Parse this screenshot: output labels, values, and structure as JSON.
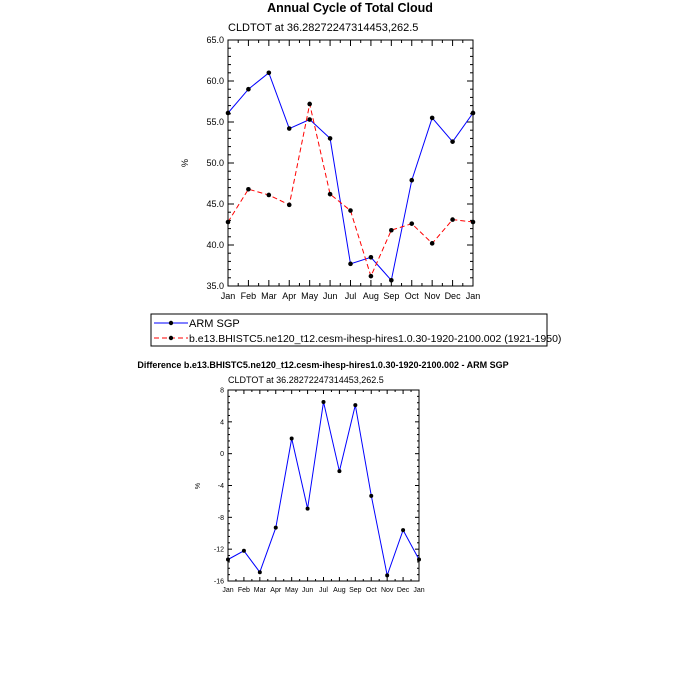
{
  "colors": {
    "obs": "#0000ff",
    "model": "#ff0000",
    "diff": "#0000ff",
    "marker": "#000000"
  },
  "chart_data": [
    {
      "type": "line",
      "title": "Annual Cycle of Total Cloud",
      "subtitle": "CLDTOT at 36.28272247314453,262.5",
      "ylabel": "%",
      "categories": [
        "Jan",
        "Feb",
        "Mar",
        "Apr",
        "May",
        "Jun",
        "Jul",
        "Aug",
        "Sep",
        "Oct",
        "Nov",
        "Dec",
        "Jan"
      ],
      "ylim": [
        35,
        65
      ],
      "yticks": [
        35,
        40,
        45,
        50,
        55,
        60,
        65
      ],
      "ytick_labels": [
        "35.0",
        "40.0",
        "45.0",
        "50.0",
        "55.0",
        "60.0",
        "65.0"
      ],
      "legend_position": "bottom",
      "series": [
        {
          "name": "ARM SGP",
          "style": "solid",
          "values": [
            56.1,
            59.0,
            61.0,
            54.2,
            55.3,
            53.0,
            37.7,
            38.5,
            35.7,
            47.9,
            55.5,
            52.6,
            56.1
          ]
        },
        {
          "name": "b.e13.BHISTC5.ne120_t12.cesm-ihesp-hires1.0.30-1920-2100.002 (1921-1950)",
          "style": "dashed",
          "values": [
            42.8,
            46.8,
            46.1,
            44.9,
            57.2,
            46.2,
            44.2,
            36.2,
            41.8,
            42.6,
            40.2,
            43.1,
            42.8
          ]
        }
      ]
    },
    {
      "type": "line",
      "title": "Difference b.e13.BHISTC5.ne120_t12.cesm-ihesp-hires1.0.30-1920-2100.002 - ARM SGP",
      "subtitle": "CLDTOT at 36.28272247314453,262.5",
      "ylabel": "%",
      "categories": [
        "Jan",
        "Feb",
        "Mar",
        "Apr",
        "May",
        "Jun",
        "Jul",
        "Aug",
        "Sep",
        "Oct",
        "Nov",
        "Dec",
        "Jan"
      ],
      "ylim": [
        -16,
        8
      ],
      "yticks": [
        -16,
        -12,
        -8,
        -4,
        0,
        4,
        8
      ],
      "ytick_labels": [
        "-16",
        "-12",
        "-8",
        "-4",
        "0",
        "4",
        "8"
      ],
      "series": [
        {
          "values": [
            -13.3,
            -12.2,
            -14.9,
            -9.3,
            1.9,
            -6.9,
            6.5,
            -2.2,
            6.1,
            -5.3,
            -15.3,
            -9.6,
            -13.3
          ]
        }
      ]
    }
  ]
}
